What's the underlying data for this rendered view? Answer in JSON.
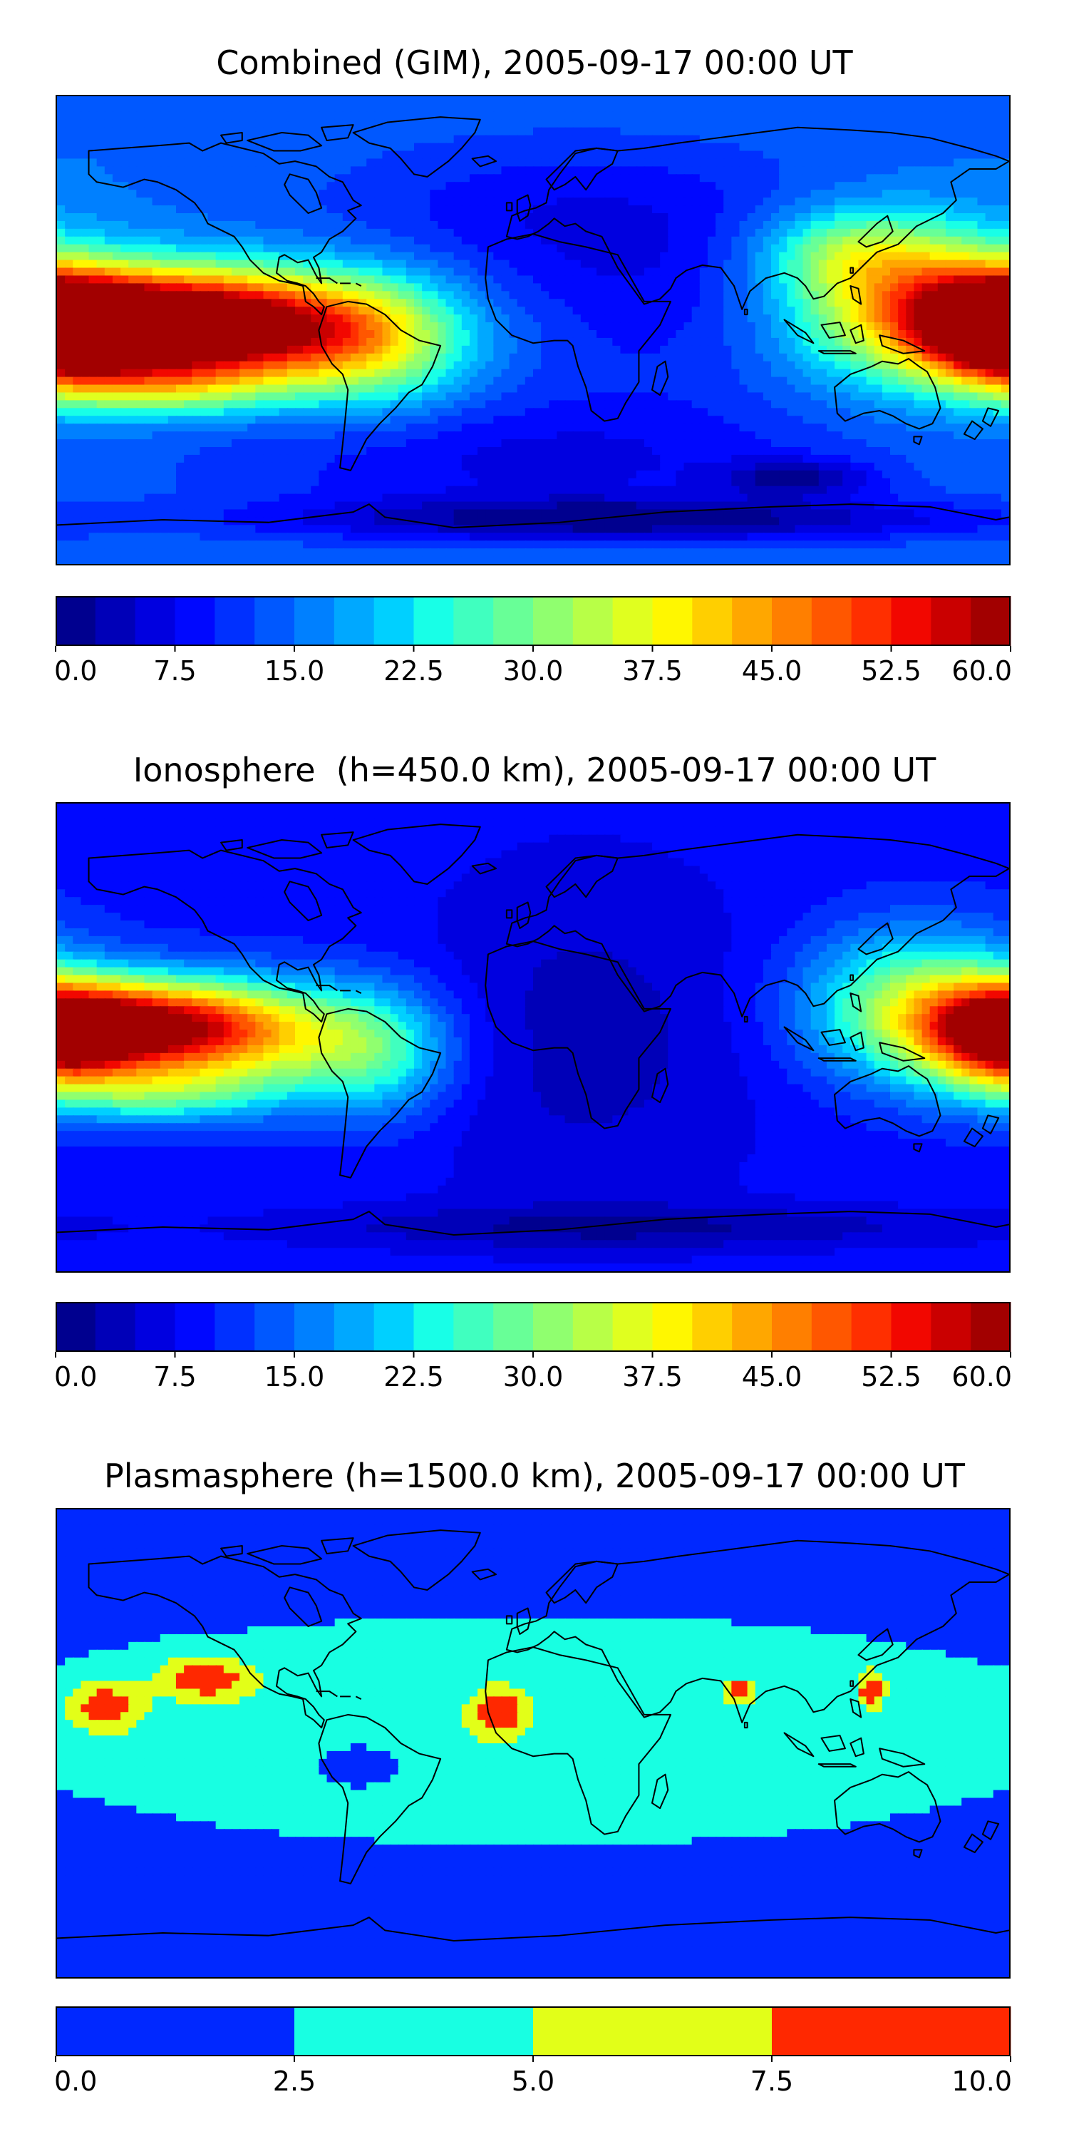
{
  "figure": {
    "panels": [
      {
        "id": "combined",
        "title": "Combined (GIM), 2005-09-17 00:00 UT",
        "colorbar_ticks": [
          "0.0",
          "7.5",
          "15.0",
          "22.5",
          "30.0",
          "37.5",
          "45.0",
          "52.5",
          "60.0"
        ]
      },
      {
        "id": "ionosphere",
        "title": "Ionosphere  (h=450.0 km), 2005-09-17 00:00 UT",
        "colorbar_ticks": [
          "0.0",
          "7.5",
          "15.0",
          "22.5",
          "30.0",
          "37.5",
          "45.0",
          "52.5",
          "60.0"
        ]
      },
      {
        "id": "plasmasphere",
        "title": "Plasmasphere (h=1500.0 km), 2005-09-17 00:00 UT",
        "colorbar_ticks": [
          "0.0",
          "2.5",
          "5.0",
          "7.5",
          "10.0"
        ]
      }
    ]
  },
  "colors": {
    "jet_24": [
      "#00008f",
      "#0000b8",
      "#0000e0",
      "#0008ff",
      "#0030ff",
      "#0058ff",
      "#0080ff",
      "#00a8ff",
      "#00d0ff",
      "#18ffe7",
      "#40ffbf",
      "#68ff97",
      "#90ff6f",
      "#b8ff47",
      "#e0ff1f",
      "#fff700",
      "#ffcf00",
      "#ffa700",
      "#ff7f00",
      "#ff5700",
      "#ff2f00",
      "#f20700",
      "#ca0000",
      "#a20000"
    ],
    "plasma_4": [
      "#0028ff",
      "#18ffe2",
      "#e2ff18",
      "#ff2800"
    ],
    "coastline": "#000000"
  },
  "chart_data": [
    {
      "type": "heatmap",
      "title": "Combined (GIM), 2005-09-17 00:00 UT",
      "map": "world coastlines, equirectangular, lon -180..180, lat -90..90",
      "colorbar": {
        "range": [
          0,
          60
        ],
        "levels": 24,
        "ticks": [
          0,
          7.5,
          15,
          22.5,
          30,
          37.5,
          45,
          52.5,
          60
        ],
        "orientation": "horizontal",
        "colormap": "jet"
      },
      "background_level": 15,
      "features": [
        {
          "lon": -145,
          "lat": 3,
          "value": 55,
          "sx": 45,
          "sy": 14
        },
        {
          "lon": -110,
          "lat": 0,
          "value": 40,
          "sx": 40,
          "sy": 15
        },
        {
          "lon": -60,
          "lat": -5,
          "value": 30,
          "sx": 25,
          "sy": 18
        },
        {
          "lon": -140,
          "lat": -22,
          "value": 28,
          "sx": 30,
          "sy": 8
        },
        {
          "lon": 180,
          "lat": 0,
          "value": 52,
          "sx": 22,
          "sy": 14
        },
        {
          "lon": 145,
          "lat": 10,
          "value": 38,
          "sx": 32,
          "sy": 20
        },
        {
          "lon": 120,
          "lat": 30,
          "value": 28,
          "sx": 25,
          "sy": 12
        },
        {
          "lon": 15,
          "lat": 45,
          "value": 8,
          "sx": 70,
          "sy": 22
        },
        {
          "lon": 45,
          "lat": 5,
          "value": 10,
          "sx": 40,
          "sy": 25
        },
        {
          "lon": 0,
          "lat": -50,
          "value": 7,
          "sx": 90,
          "sy": 18
        },
        {
          "lon": 40,
          "lat": -73,
          "value": 3,
          "sx": 100,
          "sy": 6
        },
        {
          "lon": 100,
          "lat": -57,
          "value": 5,
          "sx": 20,
          "sy": 5
        }
      ]
    },
    {
      "type": "heatmap",
      "title": "Ionosphere  (h=450.0 km), 2005-09-17 00:00 UT",
      "map": "world coastlines, equirectangular, lon -180..180, lat -90..90",
      "colorbar": {
        "range": [
          0,
          60
        ],
        "levels": 24,
        "ticks": [
          0,
          7.5,
          15,
          22.5,
          30,
          37.5,
          45,
          52.5,
          60
        ],
        "orientation": "horizontal",
        "colormap": "jet"
      },
      "background_level": 9,
      "features": [
        {
          "lon": -148,
          "lat": 5,
          "value": 42,
          "sx": 35,
          "sy": 12
        },
        {
          "lon": -115,
          "lat": 0,
          "value": 32,
          "sx": 35,
          "sy": 15
        },
        {
          "lon": -60,
          "lat": -5,
          "value": 25,
          "sx": 22,
          "sy": 18
        },
        {
          "lon": -140,
          "lat": -22,
          "value": 22,
          "sx": 30,
          "sy": 8
        },
        {
          "lon": 180,
          "lat": 0,
          "value": 45,
          "sx": 22,
          "sy": 14
        },
        {
          "lon": 145,
          "lat": 12,
          "value": 32,
          "sx": 30,
          "sy": 20
        },
        {
          "lon": 20,
          "lat": 0,
          "value": 4,
          "sx": 50,
          "sy": 50
        },
        {
          "lon": 40,
          "lat": -73,
          "value": 3,
          "sx": 100,
          "sy": 6
        }
      ]
    },
    {
      "type": "heatmap",
      "title": "Plasmasphere (h=1500.0 km), 2005-09-17 00:00 UT",
      "map": "world coastlines, equirectangular, lon -180..180, lat -90..90",
      "colorbar": {
        "range": [
          0,
          10
        ],
        "levels": 4,
        "ticks": [
          0,
          2.5,
          5,
          7.5,
          10
        ],
        "orientation": "horizontal",
        "colormap": "jet"
      },
      "background_level": 1.5,
      "features": [
        {
          "lon": 0,
          "lat": 5,
          "value": 4.5,
          "sx": 140,
          "sy": 30
        },
        {
          "lon": -162,
          "lat": 14,
          "value": 8,
          "sx": 10,
          "sy": 7
        },
        {
          "lon": -124,
          "lat": 25,
          "value": 8,
          "sx": 13,
          "sy": 6
        },
        {
          "lon": -13,
          "lat": 12,
          "value": 8,
          "sx": 6,
          "sy": 6
        },
        {
          "lon": 78,
          "lat": 20,
          "value": 8,
          "sx": 4,
          "sy": 3
        },
        {
          "lon": 128,
          "lat": 21,
          "value": 8,
          "sx": 4,
          "sy": 5
        },
        {
          "lon": -65,
          "lat": -8,
          "value": -1.5,
          "sx": 12,
          "sy": 6
        }
      ]
    }
  ]
}
